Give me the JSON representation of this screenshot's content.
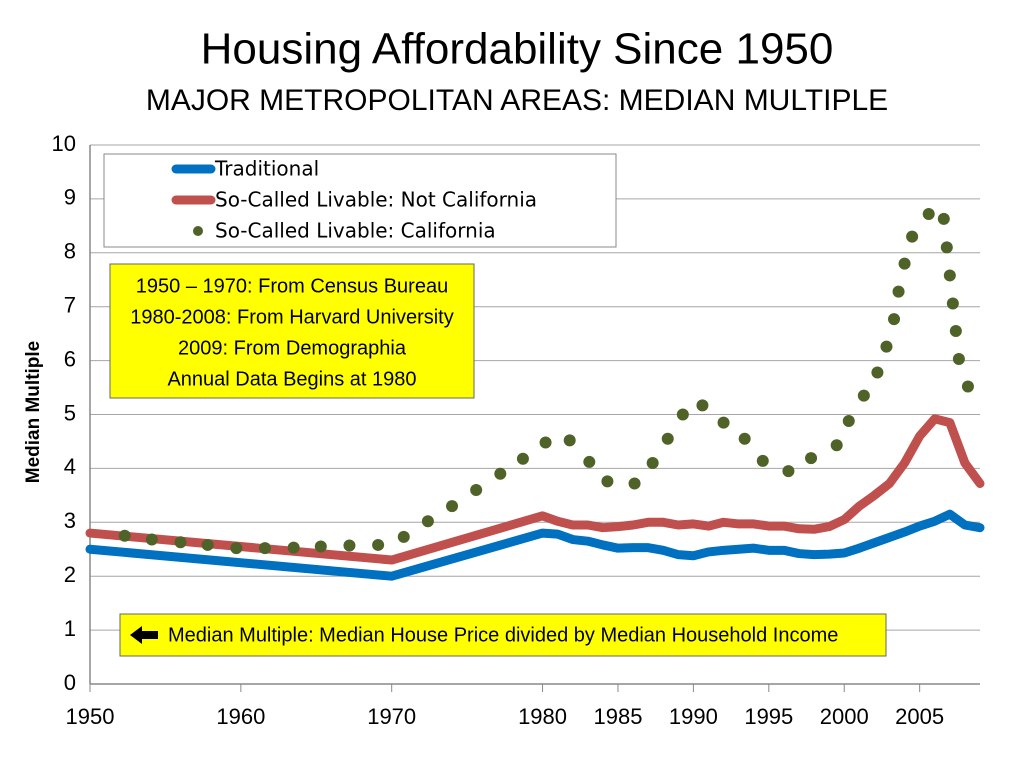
{
  "chart_data": {
    "type": "line",
    "title": "Housing Affordability Since 1950",
    "subtitle": "MAJOR METROPOLITAN AREAS: MEDIAN MULTIPLE",
    "y_label": "Median Multiple",
    "annotations": [
      "1950 – 1970: From Census Bureau",
      "1980-2008: From Harvard University",
      "2009: From Demographia",
      "Annual Data Begins at 1980"
    ],
    "note": "Median Multiple: Median House Price divided by Median Household Income",
    "x": [
      1950,
      1970,
      1980,
      1981,
      1982,
      1983,
      1984,
      1985,
      1986,
      1987,
      1988,
      1989,
      1990,
      1991,
      1992,
      1993,
      1994,
      1995,
      1996,
      1997,
      1998,
      1999,
      2000,
      2001,
      2002,
      2003,
      2004,
      2005,
      2006,
      2007,
      2008,
      2009
    ],
    "series": [
      {
        "name": "Traditional",
        "color": "#0070c0",
        "style": "line",
        "values": [
          2.5,
          2.0,
          2.8,
          2.78,
          2.68,
          2.65,
          2.58,
          2.52,
          2.53,
          2.53,
          2.48,
          2.4,
          2.38,
          2.45,
          2.48,
          2.5,
          2.52,
          2.48,
          2.48,
          2.42,
          2.4,
          2.41,
          2.43,
          2.52,
          2.62,
          2.72,
          2.82,
          2.93,
          3.02,
          3.15,
          2.95,
          2.9
        ]
      },
      {
        "name": "So-Called Livable: Not California",
        "color": "#c0504d",
        "style": "line",
        "values": [
          2.8,
          2.3,
          3.12,
          3.02,
          2.95,
          2.95,
          2.9,
          2.92,
          2.95,
          3.0,
          3.0,
          2.95,
          2.97,
          2.93,
          3.0,
          2.97,
          2.97,
          2.93,
          2.93,
          2.88,
          2.87,
          2.92,
          3.05,
          3.3,
          3.5,
          3.72,
          4.1,
          4.6,
          4.92,
          4.85,
          4.1,
          3.72
        ]
      },
      {
        "name": "So-Called Livable: California",
        "color": "#4f6228",
        "style": "markers",
        "x": [
          1952.3,
          1954.1,
          1956,
          1957.8,
          1959.7,
          1961.6,
          1963.5,
          1965.3,
          1967.2,
          1969.1,
          1970.8,
          1972.4,
          1974,
          1975.6,
          1977.2,
          1978.7,
          1980.2,
          1981.8,
          1983.1,
          1984.3,
          1986.1,
          1987.3,
          1988.3,
          1989.3,
          1990.6,
          1992,
          1993.4,
          1994.6,
          1996.3,
          1997.8,
          1999.5,
          2000.3,
          2001.3,
          2002.2,
          2002.8,
          2003.3,
          2003.6,
          2004,
          2004.5,
          2005.6,
          2006.6,
          2006.8,
          2007,
          2007.2,
          2007.4,
          2007.6,
          2008.2
        ],
        "values": [
          2.75,
          2.68,
          2.63,
          2.58,
          2.52,
          2.52,
          2.53,
          2.55,
          2.57,
          2.58,
          2.73,
          3.02,
          3.3,
          3.6,
          3.9,
          4.18,
          4.48,
          4.52,
          4.12,
          3.76,
          3.72,
          4.1,
          4.55,
          5.0,
          5.17,
          4.85,
          4.55,
          4.14,
          3.95,
          4.19,
          4.43,
          4.88,
          5.35,
          5.78,
          6.26,
          6.77,
          7.28,
          7.8,
          8.3,
          8.72,
          8.63,
          8.1,
          7.58,
          7.06,
          6.55,
          6.03,
          5.52
        ]
      }
    ],
    "xlim": [
      1950,
      2009
    ],
    "xticks": [
      1950,
      1960,
      1970,
      1980,
      1985,
      1990,
      1995,
      2000,
      2005
    ],
    "ylim": [
      0,
      10
    ],
    "yticks": [
      0,
      1,
      2,
      3,
      4,
      5,
      6,
      7,
      8,
      9,
      10
    ],
    "grid": true
  }
}
